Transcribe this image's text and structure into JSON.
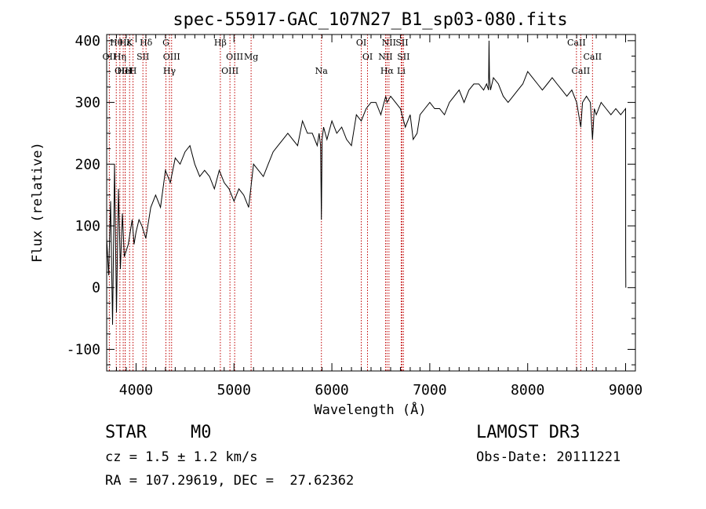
{
  "chart_data": {
    "type": "line",
    "title": "spec-55917-GAC_107N27_B1_sp03-080.fits",
    "xlabel": "Wavelength (Å)",
    "ylabel": "Flux (relative)",
    "xlim": [
      3700,
      9100
    ],
    "ylim": [
      -135,
      410
    ],
    "xticks": [
      4000,
      5000,
      6000,
      7000,
      8000,
      9000
    ],
    "yticks": [
      -100,
      0,
      100,
      200,
      300,
      400
    ],
    "series": [
      {
        "name": "flux",
        "x": [
          3700,
          3720,
          3740,
          3760,
          3780,
          3800,
          3820,
          3840,
          3860,
          3880,
          3900,
          3920,
          3940,
          3960,
          3980,
          4000,
          4030,
          4060,
          4100,
          4150,
          4200,
          4250,
          4300,
          4350,
          4400,
          4450,
          4500,
          4550,
          4600,
          4650,
          4700,
          4750,
          4800,
          4850,
          4900,
          4950,
          5000,
          5050,
          5100,
          5150,
          5200,
          5250,
          5300,
          5350,
          5400,
          5450,
          5500,
          5550,
          5600,
          5650,
          5700,
          5750,
          5800,
          5850,
          5870,
          5885,
          5893,
          5900,
          5915,
          5950,
          6000,
          6050,
          6100,
          6150,
          6200,
          6250,
          6300,
          6350,
          6400,
          6450,
          6500,
          6550,
          6563,
          6600,
          6650,
          6700,
          6750,
          6800,
          6830,
          6870,
          6900,
          6950,
          7000,
          7050,
          7100,
          7150,
          7200,
          7250,
          7300,
          7350,
          7400,
          7450,
          7500,
          7550,
          7580,
          7600,
          7605,
          7610,
          7620,
          7650,
          7700,
          7750,
          7800,
          7850,
          7900,
          7950,
          8000,
          8050,
          8100,
          8150,
          8200,
          8250,
          8300,
          8350,
          8400,
          8450,
          8500,
          8542,
          8560,
          8600,
          8640,
          8662,
          8680,
          8700,
          8750,
          8800,
          8850,
          8900,
          8950,
          9000,
          9001,
          9002
        ],
        "values": [
          80,
          20,
          140,
          -60,
          200,
          -40,
          160,
          30,
          120,
          50,
          60,
          70,
          90,
          110,
          70,
          90,
          110,
          100,
          80,
          130,
          150,
          130,
          190,
          170,
          210,
          200,
          220,
          230,
          200,
          180,
          190,
          180,
          160,
          190,
          170,
          160,
          140,
          160,
          150,
          130,
          200,
          190,
          180,
          200,
          220,
          230,
          240,
          250,
          240,
          230,
          270,
          250,
          250,
          230,
          250,
          230,
          110,
          240,
          260,
          240,
          270,
          250,
          260,
          240,
          230,
          280,
          270,
          290,
          300,
          300,
          280,
          310,
          300,
          310,
          300,
          290,
          260,
          280,
          240,
          250,
          280,
          290,
          300,
          290,
          290,
          280,
          300,
          310,
          320,
          300,
          320,
          330,
          330,
          320,
          330,
          320,
          400,
          340,
          320,
          340,
          330,
          310,
          300,
          310,
          320,
          330,
          350,
          340,
          330,
          320,
          330,
          340,
          330,
          320,
          310,
          320,
          300,
          260,
          300,
          310,
          300,
          240,
          290,
          280,
          300,
          290,
          280,
          290,
          280,
          290,
          50,
          0
        ],
        "color": "#000000"
      }
    ],
    "spectral_lines": [
      {
        "label": "Hθ",
        "wavelength": 3798
      },
      {
        "label": "OII",
        "wavelength": 3727
      },
      {
        "label": "OIII",
        "wavelength": 3869
      },
      {
        "label": "Hε",
        "wavelength": 3889
      },
      {
        "label": "Hη",
        "wavelength": 3835
      },
      {
        "label": "HeI",
        "wavelength": 3889
      },
      {
        "label": "K",
        "wavelength": 3934
      },
      {
        "label": "SII",
        "wavelength": 4070
      },
      {
        "label": "H",
        "wavelength": 3969
      },
      {
        "label": "Hδ",
        "wavelength": 4102
      },
      {
        "label": "OIII",
        "wavelength": 4363
      },
      {
        "label": "Hγ",
        "wavelength": 4341
      },
      {
        "label": "G",
        "wavelength": 4305
      },
      {
        "label": "OIII",
        "wavelength": 5007
      },
      {
        "label": "OIII",
        "wavelength": 4959
      },
      {
        "label": "Hβ",
        "wavelength": 4861
      },
      {
        "label": "Mg",
        "wavelength": 5175
      },
      {
        "label": "Na",
        "wavelength": 5893
      },
      {
        "label": "OI",
        "wavelength": 6300
      },
      {
        "label": "OI",
        "wavelength": 6364
      },
      {
        "label": "Hα",
        "wavelength": 6563
      },
      {
        "label": "SII",
        "wavelength": 6716
      },
      {
        "label": "NII",
        "wavelength": 6548
      },
      {
        "label": "Li",
        "wavelength": 6708
      },
      {
        "label": "NII",
        "wavelength": 6583
      },
      {
        "label": "SII",
        "wavelength": 6731
      },
      {
        "label": "CaII",
        "wavelength": 8542
      },
      {
        "label": "CaII",
        "wavelength": 8498
      },
      {
        "label": "CaII",
        "wavelength": 8662
      }
    ]
  },
  "info": {
    "object_class": "STAR",
    "subclass": "M0",
    "survey": "LAMOST DR3",
    "cz": "cz = 1.5 ± 1.2 km/s",
    "obs_date": "Obs-Date: 20111221",
    "coords": "RA = 107.29619, DEC =  27.62362"
  }
}
